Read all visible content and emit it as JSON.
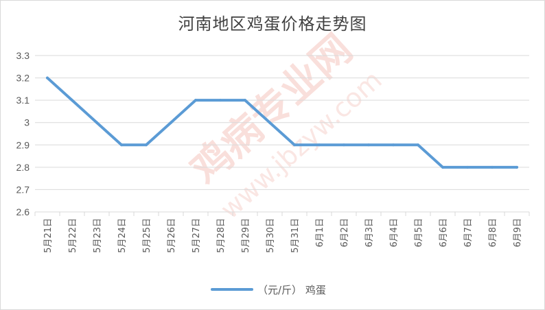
{
  "chart_data": {
    "type": "line",
    "title": "河南地区鸡蛋价格走势图",
    "categories": [
      "5月21日",
      "5月22日",
      "5月23日",
      "5月24日",
      "5月25日",
      "5月26日",
      "5月27日",
      "5月28日",
      "5月29日",
      "5月30日",
      "5月31日",
      "6月1日",
      "6月2日",
      "6月3日",
      "6月4日",
      "6月5日",
      "6月6日",
      "6月7日",
      "6月8日",
      "6月9日"
    ],
    "series": [
      {
        "name": "（元/斤） 鸡蛋",
        "values": [
          3.2,
          3.1,
          3.0,
          2.9,
          2.9,
          3.0,
          3.1,
          3.1,
          3.1,
          3.0,
          2.9,
          2.9,
          2.9,
          2.9,
          2.9,
          2.9,
          2.8,
          2.8,
          2.8,
          2.8
        ]
      }
    ],
    "ylim": [
      2.6,
      3.3
    ],
    "yticks": [
      "2.6",
      "2.7",
      "2.8",
      "2.9",
      "3",
      "3.1",
      "3.2",
      "3.3"
    ],
    "grid": true,
    "legend_position": "bottom",
    "colors": {
      "line": "#5b9bd5",
      "grid": "#d9d9d9",
      "text": "#595959",
      "watermark": "#f2b8b0"
    }
  },
  "watermark": {
    "site_name": "鸡病专业网",
    "url": "www.jbzyw.com"
  }
}
